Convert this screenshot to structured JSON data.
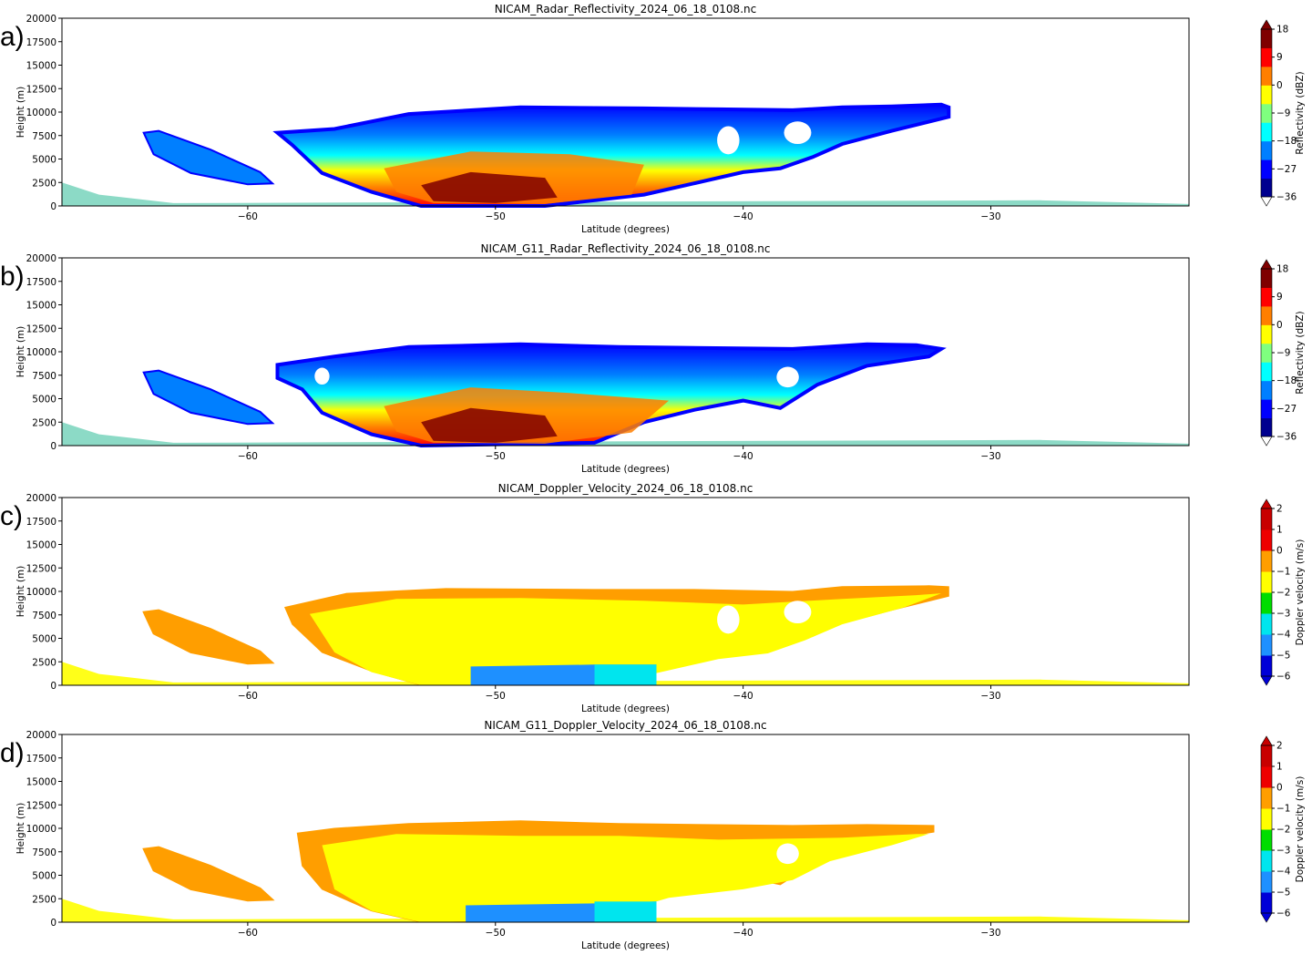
{
  "chart_data": [
    {
      "panel": "a)",
      "type": "heatmap",
      "title": "NICAM_Radar_Reflectivity_2024_06_18_0108.nc",
      "xlabel": "Latitude (degrees)",
      "ylabel": "Height (m)",
      "xlim": [
        -67.5,
        -22
      ],
      "ylim": [
        0,
        20000
      ],
      "xticks": [
        -60,
        -50,
        -40,
        -30
      ],
      "yticks": [
        0,
        2500,
        5000,
        7500,
        10000,
        12500,
        15000,
        17500,
        20000
      ],
      "colorbar": {
        "label": "Reflectivity (dBZ)",
        "ticks": [
          18,
          9,
          0,
          -9,
          -18,
          -27,
          -36
        ],
        "range": [
          -36,
          18
        ],
        "extend": "both",
        "colors": [
          "#00008f",
          "#0000ff",
          "#007fff",
          "#00ffff",
          "#7fff7f",
          "#ffff00",
          "#ff7f00",
          "#ff0000",
          "#7f0000"
        ]
      },
      "cloud": {
        "outline": [
          [
            -56.5,
            8200
          ],
          [
            -53.5,
            9800
          ],
          [
            -49,
            10500
          ],
          [
            -44,
            10400
          ],
          [
            -41,
            10300
          ],
          [
            -38,
            10200
          ],
          [
            -36,
            10500
          ],
          [
            -34,
            10600
          ],
          [
            -32,
            10800
          ],
          [
            -31.7,
            10500
          ],
          [
            -31.7,
            9500
          ],
          [
            -34,
            8000
          ],
          [
            -36,
            6600
          ],
          [
            -37.2,
            5200
          ],
          [
            -38.5,
            4000
          ],
          [
            -40,
            3600
          ],
          [
            -42,
            2400
          ],
          [
            -44,
            1200
          ],
          [
            -48,
            0
          ],
          [
            -53,
            0
          ],
          [
            -55,
            1500
          ],
          [
            -57,
            3500
          ],
          [
            -58.2,
            6500
          ],
          [
            -58.8,
            7800
          ]
        ],
        "core_a": [
          [
            -54.5,
            4000
          ],
          [
            -51,
            5800
          ],
          [
            -47,
            5500
          ],
          [
            -44,
            4400
          ],
          [
            -44.5,
            1200
          ],
          [
            -48,
            200
          ],
          [
            -52.5,
            300
          ],
          [
            -54,
            1500
          ]
        ],
        "core_b": [
          [
            -53,
            2200
          ],
          [
            -51,
            3600
          ],
          [
            -48,
            3000
          ],
          [
            -47.5,
            900
          ],
          [
            -50,
            300
          ],
          [
            -52.5,
            500
          ]
        ],
        "anvil": [
          [
            -63.6,
            8000
          ],
          [
            -61.5,
            6000
          ],
          [
            -59.5,
            3600
          ],
          [
            -59,
            2400
          ],
          [
            -60,
            2300
          ],
          [
            -62.3,
            3500
          ],
          [
            -63.8,
            5500
          ],
          [
            -64.2,
            7800
          ]
        ],
        "surface": [
          [
            -67.5,
            2500
          ],
          [
            -66,
            1200
          ],
          [
            -63,
            300
          ],
          [
            -28,
            600
          ],
          [
            -22,
            200
          ],
          [
            -22,
            0
          ],
          [
            -67.5,
            0
          ]
        ],
        "holes": [
          [
            -37.8,
            7800,
            0.55,
            1200
          ],
          [
            -40.6,
            7000,
            0.45,
            1500
          ]
        ]
      }
    },
    {
      "panel": "b)",
      "type": "heatmap",
      "title": "NICAM_G11_Radar_Reflectivity_2024_06_18_0108.nc",
      "xlabel": "Latitude (degrees)",
      "ylabel": "Height (m)",
      "xlim": [
        -67.5,
        -22
      ],
      "ylim": [
        0,
        20000
      ],
      "xticks": [
        -60,
        -50,
        -40,
        -30
      ],
      "yticks": [
        0,
        2500,
        5000,
        7500,
        10000,
        12500,
        15000,
        17500,
        20000
      ],
      "colorbar": {
        "label": "Reflectivity (dBZ)",
        "ticks": [
          18,
          9,
          0,
          -9,
          -18,
          -27,
          -36
        ],
        "range": [
          -36,
          18
        ],
        "extend": "both",
        "colors": [
          "#00008f",
          "#0000ff",
          "#007fff",
          "#00ffff",
          "#7fff7f",
          "#ffff00",
          "#ff7f00",
          "#ff0000",
          "#7f0000"
        ]
      },
      "cloud": {
        "outline": [
          [
            -58.8,
            8600
          ],
          [
            -56.5,
            9500
          ],
          [
            -53.5,
            10500
          ],
          [
            -49,
            10800
          ],
          [
            -45,
            10500
          ],
          [
            -38,
            10300
          ],
          [
            -35,
            10800
          ],
          [
            -33,
            10700
          ],
          [
            -32,
            10300
          ],
          [
            -32.5,
            9500
          ],
          [
            -35,
            8500
          ],
          [
            -37,
            6500
          ],
          [
            -38.5,
            4000
          ],
          [
            -40,
            4800
          ],
          [
            -42,
            3800
          ],
          [
            -44,
            2500
          ],
          [
            -46,
            300
          ],
          [
            -53,
            0
          ],
          [
            -55,
            1200
          ],
          [
            -57,
            3500
          ],
          [
            -57.8,
            6000
          ],
          [
            -58.8,
            7200
          ]
        ],
        "core_a": [
          [
            -54.5,
            4200
          ],
          [
            -51,
            6200
          ],
          [
            -47,
            5600
          ],
          [
            -43,
            4800
          ],
          [
            -44.5,
            1400
          ],
          [
            -48,
            200
          ],
          [
            -52.5,
            300
          ],
          [
            -54,
            1500
          ]
        ],
        "core_b": [
          [
            -53,
            2500
          ],
          [
            -51,
            4000
          ],
          [
            -48,
            3200
          ],
          [
            -47.5,
            1000
          ],
          [
            -50,
            300
          ],
          [
            -52.5,
            500
          ]
        ],
        "anvil": [
          [
            -63.6,
            8000
          ],
          [
            -61.5,
            6000
          ],
          [
            -59.5,
            3600
          ],
          [
            -59,
            2400
          ],
          [
            -60,
            2300
          ],
          [
            -62.3,
            3500
          ],
          [
            -63.8,
            5500
          ],
          [
            -64.2,
            7800
          ]
        ],
        "surface": [
          [
            -67.5,
            2500
          ],
          [
            -66,
            1200
          ],
          [
            -63,
            300
          ],
          [
            -28,
            600
          ],
          [
            -22,
            200
          ],
          [
            -22,
            0
          ],
          [
            -67.5,
            0
          ]
        ],
        "holes": [
          [
            -38.2,
            7300,
            0.45,
            1100
          ],
          [
            -57,
            7400,
            0.3,
            900
          ]
        ]
      }
    },
    {
      "panel": "c)",
      "type": "heatmap",
      "title": "NICAM_Doppler_Velocity_2024_06_18_0108.nc",
      "xlabel": "Latitude (degrees)",
      "ylabel": "Height (m)",
      "xlim": [
        -67.5,
        -22
      ],
      "ylim": [
        0,
        20000
      ],
      "xticks": [
        -60,
        -50,
        -40,
        -30
      ],
      "yticks": [
        0,
        2500,
        5000,
        7500,
        10000,
        12500,
        15000,
        17500,
        20000
      ],
      "colorbar": {
        "label": "Doppler velocity (m/s)",
        "ticks": [
          2,
          1,
          0,
          -1,
          -2,
          -3,
          -4,
          -5,
          -6
        ],
        "range": [
          -6,
          2
        ],
        "extend": "both",
        "colors": [
          "#0000d8",
          "#1e90ff",
          "#00e5ee",
          "#00dd00",
          "#ffff00",
          "#ff9e00",
          "#ee0000",
          "#c80000"
        ]
      },
      "cloud": {
        "outline": [
          [
            -58.5,
            8300
          ],
          [
            -56,
            9800
          ],
          [
            -52,
            10300
          ],
          [
            -46,
            10200
          ],
          [
            -42,
            10200
          ],
          [
            -38,
            10000
          ],
          [
            -36,
            10500
          ],
          [
            -32.5,
            10600
          ],
          [
            -31.7,
            10500
          ],
          [
            -31.7,
            9500
          ],
          [
            -34,
            8000
          ],
          [
            -36,
            6600
          ],
          [
            -37.2,
            5200
          ],
          [
            -38.5,
            4000
          ],
          [
            -40,
            3600
          ],
          [
            -42,
            2400
          ],
          [
            -44,
            1200
          ],
          [
            -48,
            0
          ],
          [
            -53,
            0
          ],
          [
            -55,
            1500
          ],
          [
            -57,
            3500
          ],
          [
            -58.2,
            6500
          ]
        ],
        "core_a": [
          [
            -57.5,
            7600
          ],
          [
            -54,
            9200
          ],
          [
            -49,
            9300
          ],
          [
            -44,
            9000
          ],
          [
            -40,
            8600
          ],
          [
            -36,
            9200
          ],
          [
            -33,
            9600
          ],
          [
            -32,
            9800
          ],
          [
            -33.5,
            8300
          ],
          [
            -36,
            6500
          ],
          [
            -37.5,
            4800
          ],
          [
            -39,
            3400
          ],
          [
            -41,
            2800
          ],
          [
            -44,
            1000
          ],
          [
            -48,
            0
          ],
          [
            -53,
            0
          ],
          [
            -55,
            1400
          ],
          [
            -56.5,
            3500
          ]
        ],
        "core_b": [
          [
            -51,
            2000
          ],
          [
            -46,
            2200
          ],
          [
            -43.5,
            2200
          ],
          [
            -43.5,
            0
          ],
          [
            -51,
            0
          ]
        ],
        "anvil": [
          [
            -63.6,
            8000
          ],
          [
            -61.5,
            6000
          ],
          [
            -59.5,
            3600
          ],
          [
            -59,
            2400
          ],
          [
            -60,
            2300
          ],
          [
            -62.3,
            3500
          ],
          [
            -63.8,
            5500
          ],
          [
            -64.2,
            7800
          ]
        ],
        "surface": [
          [
            -67.5,
            2500
          ],
          [
            -66,
            1200
          ],
          [
            -63,
            300
          ],
          [
            -28,
            600
          ],
          [
            -22,
            200
          ],
          [
            -22,
            0
          ],
          [
            -67.5,
            0
          ]
        ],
        "holes": [
          [
            -37.8,
            7800,
            0.55,
            1200
          ],
          [
            -40.6,
            7000,
            0.45,
            1500
          ]
        ]
      }
    },
    {
      "panel": "d)",
      "type": "heatmap",
      "title": "NICAM_G11_Doppler_Velocity_2024_06_18_0108.nc",
      "xlabel": "Latitude (degrees)",
      "ylabel": "Height (m)",
      "xlim": [
        -67.5,
        -22
      ],
      "ylim": [
        0,
        20000
      ],
      "xticks": [
        -60,
        -50,
        -40,
        -30
      ],
      "yticks": [
        0,
        2500,
        5000,
        7500,
        10000,
        12500,
        15000,
        17500,
        20000
      ],
      "colorbar": {
        "label": "Doppler velocity (m/s)",
        "ticks": [
          2,
          1,
          0,
          -1,
          -2,
          -3,
          -4,
          -5,
          -6
        ],
        "range": [
          -6,
          2
        ],
        "extend": "both",
        "colors": [
          "#0000d8",
          "#1e90ff",
          "#00e5ee",
          "#00dd00",
          "#ffff00",
          "#ff9e00",
          "#ee0000",
          "#c80000"
        ]
      },
      "cloud": {
        "outline": [
          [
            -58,
            9500
          ],
          [
            -56.5,
            10000
          ],
          [
            -53.5,
            10500
          ],
          [
            -49,
            10800
          ],
          [
            -45,
            10500
          ],
          [
            -38,
            10300
          ],
          [
            -35,
            10400
          ],
          [
            -32.3,
            10300
          ],
          [
            -32.3,
            9600
          ],
          [
            -35,
            8500
          ],
          [
            -37,
            6500
          ],
          [
            -38.5,
            4000
          ],
          [
            -40,
            4800
          ],
          [
            -42,
            3800
          ],
          [
            -44,
            2500
          ],
          [
            -46,
            300
          ],
          [
            -53,
            0
          ],
          [
            -55,
            1200
          ],
          [
            -57,
            3500
          ],
          [
            -57.8,
            6000
          ]
        ],
        "core_a": [
          [
            -57,
            8200
          ],
          [
            -54,
            9400
          ],
          [
            -49,
            9200
          ],
          [
            -45,
            9200
          ],
          [
            -41,
            8800
          ],
          [
            -36,
            9000
          ],
          [
            -33,
            9400
          ],
          [
            -32.5,
            9400
          ],
          [
            -34,
            8200
          ],
          [
            -36.5,
            6500
          ],
          [
            -38,
            4500
          ],
          [
            -40,
            3500
          ],
          [
            -43,
            2600
          ],
          [
            -46,
            300
          ],
          [
            -53,
            0
          ],
          [
            -55,
            1200
          ],
          [
            -56.5,
            3500
          ]
        ],
        "core_b": [
          [
            -51.2,
            1800
          ],
          [
            -46,
            2000
          ],
          [
            -43.5,
            2200
          ],
          [
            -43.5,
            0
          ],
          [
            -51.2,
            0
          ]
        ],
        "anvil": [
          [
            -63.6,
            8000
          ],
          [
            -61.5,
            6000
          ],
          [
            -59.5,
            3600
          ],
          [
            -59,
            2400
          ],
          [
            -60,
            2300
          ],
          [
            -62.3,
            3500
          ],
          [
            -63.8,
            5500
          ],
          [
            -64.2,
            7800
          ]
        ],
        "surface": [
          [
            -67.5,
            2500
          ],
          [
            -66,
            1200
          ],
          [
            -63,
            300
          ],
          [
            -28,
            600
          ],
          [
            -22,
            200
          ],
          [
            -22,
            0
          ],
          [
            -67.5,
            0
          ]
        ],
        "holes": [
          [
            -38.2,
            7300,
            0.45,
            1100
          ]
        ]
      }
    }
  ]
}
